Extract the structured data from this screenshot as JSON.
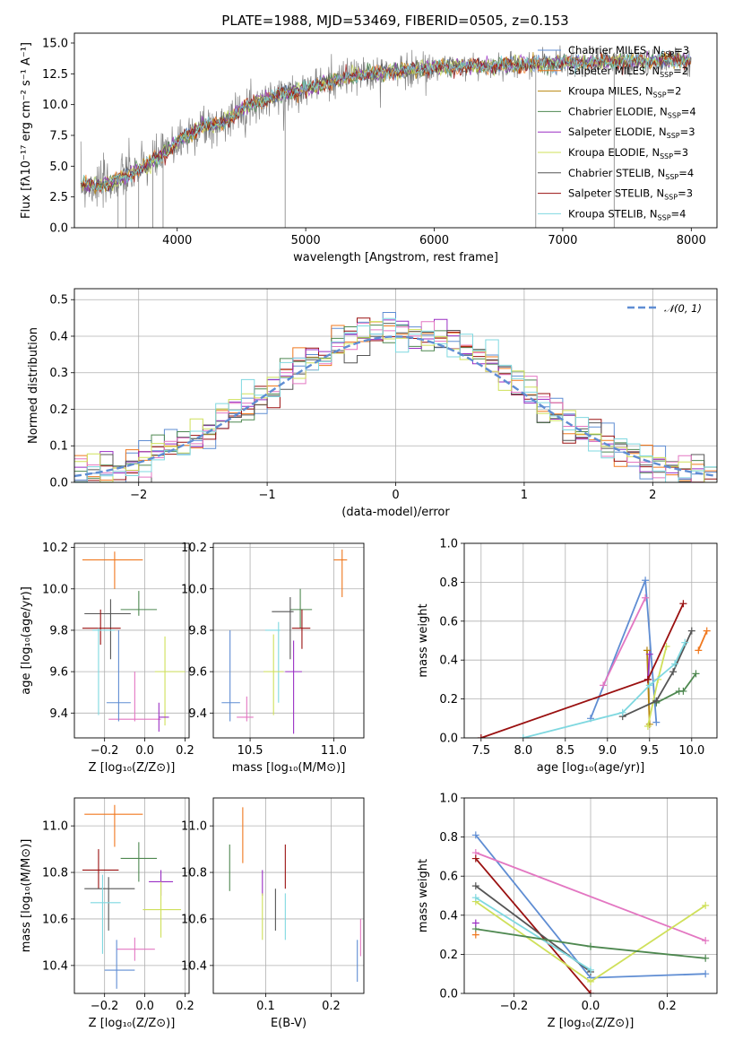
{
  "colors": {
    "blue": "#5f8dd3",
    "orange": "#f0781e",
    "green": "#4e8850",
    "red": "#9a1010",
    "purple": "#9a2fc4",
    "gray": "#555555",
    "pink": "#e377c2",
    "olive": "#cfe05a",
    "cyan": "#7fd8e0"
  },
  "chart_data": [
    {
      "type": "line",
      "title": "PLATE=1988, MJD=53469, FIBERID=0505, z=0.153",
      "xlabel": "wavelength [Angstrom, rest frame]",
      "ylabel": "Flux [fλ10⁻¹⁷ erg cm⁻² s⁻¹ A⁻¹]",
      "xlim": [
        3200,
        8200
      ],
      "ylim": [
        0,
        15.8
      ],
      "xticks": [
        "4000",
        "5000",
        "6000",
        "7000",
        "8000"
      ],
      "yticks": [
        "0.0",
        "2.5",
        "5.0",
        "7.5",
        "10.0",
        "12.5",
        "15.0"
      ],
      "grid": false,
      "legend_position": "top-right",
      "legend": [
        {
          "label": "Chabrier MILES, N",
          "sub": "SSP",
          "suffix": "=3",
          "color": "blue"
        },
        {
          "label": "Salpeter MILES, N",
          "sub": "SSP",
          "suffix": "=2",
          "color": "orange"
        },
        {
          "label": "Kroupa MILES, N",
          "sub": "SSP",
          "suffix": "=2",
          "color": "#b8860b"
        },
        {
          "label": "Chabrier ELODIE, N",
          "sub": "SSP",
          "suffix": "=4",
          "color": "green"
        },
        {
          "label": "Salpeter ELODIE, N",
          "sub": "SSP",
          "suffix": "=3",
          "color": "purple"
        },
        {
          "label": "Kroupa ELODIE, N",
          "sub": "SSP",
          "suffix": "=3",
          "color": "olive"
        },
        {
          "label": "Chabrier STELIB, N",
          "sub": "SSP",
          "suffix": "=4",
          "color": "gray"
        },
        {
          "label": "Salpeter STELIB, N",
          "sub": "SSP",
          "suffix": "=3",
          "color": "red"
        },
        {
          "label": "Kroupa STELIB, N",
          "sub": "SSP",
          "suffix": "=4",
          "color": "cyan"
        }
      ],
      "spectrum_envelope": {
        "x": [
          3250,
          3400,
          3500,
          3600,
          3700,
          3800,
          3900,
          4000,
          4100,
          4200,
          4300,
          4400,
          4500,
          4600,
          4800,
          5000,
          5200,
          5400,
          5600,
          5800,
          6000,
          6200,
          6400,
          6600,
          6800,
          7000,
          7200,
          7400,
          7600,
          7800,
          8000
        ],
        "y": [
          3.5,
          3.4,
          3.7,
          4.2,
          4.7,
          5.3,
          6.0,
          7.0,
          7.6,
          8.3,
          8.2,
          8.9,
          9.6,
          10.1,
          10.8,
          11.3,
          11.9,
          12.4,
          12.6,
          12.8,
          13.0,
          13.1,
          13.1,
          13.2,
          13.3,
          13.4,
          13.4,
          13.5,
          13.5,
          13.6,
          13.6
        ]
      },
      "spikes_down": [
        3540,
        3600,
        3700,
        3810,
        3890,
        4840,
        6790,
        7400
      ]
    },
    {
      "type": "bar",
      "xlabel": "(data-model)/error",
      "ylabel": "Normed distribution",
      "xlim": [
        -2.5,
        2.5
      ],
      "ylim": [
        0,
        0.53
      ],
      "xticks": [
        "−2",
        "−1",
        "0",
        "1",
        "2"
      ],
      "yticks": [
        "0.0",
        "0.1",
        "0.2",
        "0.3",
        "0.4",
        "0.5"
      ],
      "grid": true,
      "legend_position": "top-right",
      "legend_label": "𝒩(0, 1)",
      "bin_width": 0.1,
      "normal_curve": {
        "mean": 0,
        "std": 1
      }
    },
    {
      "type": "scatter",
      "xlabel": "Z [log₁₀(Z/Z⊙)]",
      "ylabel": "age  [log₁₀(age/yr)]",
      "xlim": [
        -0.35,
        0.22
      ],
      "ylim": [
        9.28,
        10.22
      ],
      "xticks": [
        "−0.2",
        "0.0",
        "0.2"
      ],
      "yticks": [
        "9.4",
        "9.6",
        "9.8",
        "10.0",
        "10.2"
      ],
      "points": [
        {
          "color": "orange",
          "x": -0.15,
          "xerr": [
            0.16,
            0.14
          ],
          "y": 10.14,
          "yerr": [
            0.14,
            0.04
          ]
        },
        {
          "color": "green",
          "x": -0.03,
          "xerr": [
            0.09,
            0.09
          ],
          "y": 9.9,
          "yerr": [
            0.03,
            0.09
          ]
        },
        {
          "color": "gray",
          "x": -0.17,
          "xerr": [
            0.13,
            0.1
          ],
          "y": 9.88,
          "yerr": [
            0.22,
            0.07
          ]
        },
        {
          "color": "red",
          "x": -0.22,
          "xerr": [
            0.09,
            0.1
          ],
          "y": 9.81,
          "yerr": [
            0.08,
            0.09
          ]
        },
        {
          "color": "cyan",
          "x": -0.23,
          "xerr": [
            0.03,
            0.08
          ],
          "y": 9.8,
          "yerr": [
            0.41,
            0.01
          ]
        },
        {
          "color": "olive",
          "x": 0.1,
          "xerr": [
            0.05,
            0.1
          ],
          "y": 9.6,
          "yerr": [
            0.26,
            0.17
          ]
        },
        {
          "color": "pink",
          "x": -0.05,
          "xerr": [
            0.13,
            0.13
          ],
          "y": 9.37,
          "yerr": [
            0.01,
            0.23
          ]
        },
        {
          "color": "blue",
          "x": -0.13,
          "xerr": [
            0.06,
            0.06
          ],
          "y": 9.45,
          "yerr": [
            0.09,
            0.35
          ]
        },
        {
          "color": "purple",
          "x": 0.07,
          "xerr": [
            0.0,
            0.05
          ],
          "y": 9.38,
          "yerr": [
            0.07,
            0.07
          ]
        }
      ]
    },
    {
      "type": "scatter",
      "xlabel": "mass [log₁₀(M/M⊙)]",
      "ylabel": "",
      "xlim": [
        10.28,
        11.18
      ],
      "ylim": [
        9.28,
        10.22
      ],
      "xticks": [
        "10.5",
        "11.0"
      ],
      "yticks": [
        "9.4",
        "9.6",
        "9.8",
        "10.0",
        "10.2"
      ],
      "points": [
        {
          "color": "orange",
          "x": 11.05,
          "xerr": [
            0.05,
            0.03
          ],
          "y": 10.14,
          "yerr": [
            0.18,
            0.05
          ]
        },
        {
          "color": "green",
          "x": 10.8,
          "xerr": [
            0.06,
            0.07
          ],
          "y": 9.9,
          "yerr": [
            0.09,
            0.1
          ]
        },
        {
          "color": "gray",
          "x": 10.74,
          "xerr": [
            0.11,
            0.02
          ],
          "y": 9.89,
          "yerr": [
            0.23,
            0.07
          ]
        },
        {
          "color": "red",
          "x": 10.81,
          "xerr": [
            0.06,
            0.05
          ],
          "y": 9.81,
          "yerr": [
            0.1,
            0.09
          ]
        },
        {
          "color": "cyan",
          "x": 10.67,
          "xerr": [
            0.08,
            0.01
          ],
          "y": 9.8,
          "yerr": [
            0.35,
            0.04
          ]
        },
        {
          "color": "olive",
          "x": 10.64,
          "xerr": [
            0.06,
            0.06
          ],
          "y": 9.6,
          "yerr": [
            0.21,
            0.18
          ]
        },
        {
          "color": "purple",
          "x": 10.76,
          "xerr": [
            0.05,
            0.05
          ],
          "y": 9.6,
          "yerr": [
            0.3,
            0.15
          ]
        },
        {
          "color": "blue",
          "x": 10.38,
          "xerr": [
            0.05,
            0.06
          ],
          "y": 9.45,
          "yerr": [
            0.09,
            0.35
          ]
        },
        {
          "color": "pink",
          "x": 10.48,
          "xerr": [
            0.06,
            0.04
          ],
          "y": 9.38,
          "yerr": [
            0.02,
            0.1
          ]
        }
      ]
    },
    {
      "type": "line",
      "xlabel": "age  [log₁₀(age/yr)]",
      "ylabel": "mass weight",
      "xlim": [
        7.3,
        10.3
      ],
      "ylim": [
        0,
        1
      ],
      "xticks": [
        "7.5",
        "8.0",
        "8.5",
        "9.0",
        "9.5",
        "10.0"
      ],
      "yticks": [
        "0.0",
        "0.2",
        "0.4",
        "0.6",
        "0.8",
        "1.0"
      ],
      "grid": true,
      "series": [
        {
          "color": "blue",
          "x": [
            8.8,
            9.45,
            9.58
          ],
          "y": [
            0.1,
            0.81,
            0.08
          ]
        },
        {
          "color": "orange",
          "x": [
            10.08,
            10.18
          ],
          "y": [
            0.45,
            0.55
          ]
        },
        {
          "color": "#b8860b",
          "x": [
            9.47,
            9.5
          ],
          "y": [
            0.45,
            0.07
          ]
        },
        {
          "color": "green",
          "x": [
            9.58,
            9.85,
            9.9,
            10.05
          ],
          "y": [
            0.18,
            0.24,
            0.24,
            0.33
          ]
        },
        {
          "color": "purple",
          "x": [
            9.48,
            9.5
          ],
          "y": [
            0.3,
            0.43
          ]
        },
        {
          "color": "olive",
          "x": [
            9.48,
            9.6,
            9.7
          ],
          "y": [
            0.06,
            0.3,
            0.47
          ]
        },
        {
          "color": "gray",
          "x": [
            9.18,
            9.58,
            9.78,
            10.0
          ],
          "y": [
            0.11,
            0.19,
            0.34,
            0.55
          ]
        },
        {
          "color": "red",
          "x": [
            7.5,
            9.48,
            9.9
          ],
          "y": [
            0.0,
            0.3,
            0.69
          ]
        },
        {
          "color": "cyan",
          "x": [
            8.0,
            9.18,
            9.5,
            9.8,
            9.92
          ],
          "y": [
            0.0,
            0.13,
            0.27,
            0.38,
            0.49
          ]
        },
        {
          "color": "pink",
          "x": [
            8.95,
            9.45
          ],
          "y": [
            0.27,
            0.72
          ]
        }
      ]
    },
    {
      "type": "scatter",
      "xlabel": "Z [log₁₀(Z/Z⊙)]",
      "ylabel": "mass [log₁₀(M/M⊙)]",
      "xlim": [
        -0.35,
        0.22
      ],
      "ylim": [
        10.28,
        11.12
      ],
      "xticks": [
        "−0.2",
        "0.0",
        "0.2"
      ],
      "yticks": [
        "10.4",
        "10.6",
        "10.8",
        "11.0"
      ],
      "points": [
        {
          "color": "orange",
          "x": -0.15,
          "xerr": [
            0.15,
            0.14
          ],
          "y": 11.05,
          "yerr": [
            0.14,
            0.04
          ]
        },
        {
          "color": "green",
          "x": -0.03,
          "xerr": [
            0.09,
            0.09
          ],
          "y": 10.86,
          "yerr": [
            0.1,
            0.07
          ]
        },
        {
          "color": "red",
          "x": -0.23,
          "xerr": [
            0.08,
            0.1
          ],
          "y": 10.81,
          "yerr": [
            0.08,
            0.09
          ]
        },
        {
          "color": "purple",
          "x": 0.08,
          "xerr": [
            0.06,
            0.06
          ],
          "y": 10.76,
          "yerr": [
            0.06,
            0.05
          ]
        },
        {
          "color": "gray",
          "x": -0.18,
          "xerr": [
            0.12,
            0.13
          ],
          "y": 10.73,
          "yerr": [
            0.18,
            0.05
          ]
        },
        {
          "color": "cyan",
          "x": -0.21,
          "xerr": [
            0.06,
            0.09
          ],
          "y": 10.67,
          "yerr": [
            0.22,
            0.12
          ]
        },
        {
          "color": "olive",
          "x": 0.08,
          "xerr": [
            0.09,
            0.1
          ],
          "y": 10.64,
          "yerr": [
            0.12,
            0.12
          ]
        },
        {
          "color": "pink",
          "x": -0.05,
          "xerr": [
            0.09,
            0.1
          ],
          "y": 10.47,
          "yerr": [
            0.05,
            0.05
          ]
        },
        {
          "color": "blue",
          "x": -0.14,
          "xerr": [
            0.06,
            0.09
          ],
          "y": 10.38,
          "yerr": [
            0.08,
            0.13
          ]
        }
      ]
    },
    {
      "type": "scatter",
      "xlabel": "E(B-V)",
      "ylabel": "",
      "xlim": [
        0.02,
        0.25
      ],
      "ylim": [
        10.28,
        11.12
      ],
      "xticks": [
        "0.1",
        "0.2"
      ],
      "yticks": [
        "10.4",
        "10.6",
        "10.8",
        "11.0"
      ],
      "points": [
        {
          "color": "green",
          "x": 0.045,
          "y": 10.85,
          "yerr": [
            0.13,
            0.07
          ]
        },
        {
          "color": "orange",
          "x": 0.065,
          "y": 10.98,
          "yerr": [
            0.14,
            0.1
          ]
        },
        {
          "color": "purple",
          "x": 0.095,
          "y": 10.75,
          "yerr": [
            0.05,
            0.06
          ]
        },
        {
          "color": "olive",
          "x": 0.095,
          "y": 10.61,
          "yerr": [
            0.1,
            0.1
          ]
        },
        {
          "color": "gray",
          "x": 0.115,
          "y": 10.63,
          "yerr": [
            0.08,
            0.1
          ]
        },
        {
          "color": "red",
          "x": 0.13,
          "y": 10.82,
          "yerr": [
            0.09,
            0.1
          ]
        },
        {
          "color": "cyan",
          "x": 0.13,
          "y": 10.61,
          "yerr": [
            0.1,
            0.1
          ]
        },
        {
          "color": "blue",
          "x": 0.24,
          "y": 10.42,
          "yerr": [
            0.09,
            0.09
          ]
        },
        {
          "color": "pink",
          "x": 0.245,
          "y": 10.52,
          "yerr": [
            0.08,
            0.08
          ]
        }
      ]
    },
    {
      "type": "line",
      "xlabel": "Z [log₁₀(Z/Z⊙)]",
      "ylabel": "mass weight",
      "xlim": [
        -0.33,
        0.33
      ],
      "ylim": [
        0,
        1
      ],
      "xticks": [
        "−0.2",
        "0.0",
        "0.2"
      ],
      "yticks": [
        "0.0",
        "0.2",
        "0.4",
        "0.6",
        "0.8",
        "1.0"
      ],
      "grid": true,
      "series": [
        {
          "color": "blue",
          "x": [
            -0.3,
            0.0,
            0.3
          ],
          "y": [
            0.81,
            0.08,
            0.1
          ]
        },
        {
          "color": "pink",
          "x": [
            -0.3,
            0.3
          ],
          "y": [
            0.72,
            0.27
          ]
        },
        {
          "color": "red",
          "x": [
            -0.3,
            0.0
          ],
          "y": [
            0.69,
            0.0
          ]
        },
        {
          "color": "gray",
          "x": [
            -0.3,
            0.0
          ],
          "y": [
            0.55,
            0.11
          ]
        },
        {
          "color": "olive",
          "x": [
            -0.3,
            0.0,
            0.3
          ],
          "y": [
            0.47,
            0.06,
            0.45
          ]
        },
        {
          "color": "cyan",
          "x": [
            -0.3,
            0.0
          ],
          "y": [
            0.49,
            0.12
          ]
        },
        {
          "color": "green",
          "x": [
            -0.3,
            0.0,
            0.3
          ],
          "y": [
            0.33,
            0.24,
            0.18
          ]
        },
        {
          "color": "purple",
          "x": [
            -0.3
          ],
          "y": [
            0.36
          ]
        },
        {
          "color": "orange",
          "x": [
            -0.3
          ],
          "y": [
            0.3
          ]
        }
      ]
    }
  ]
}
